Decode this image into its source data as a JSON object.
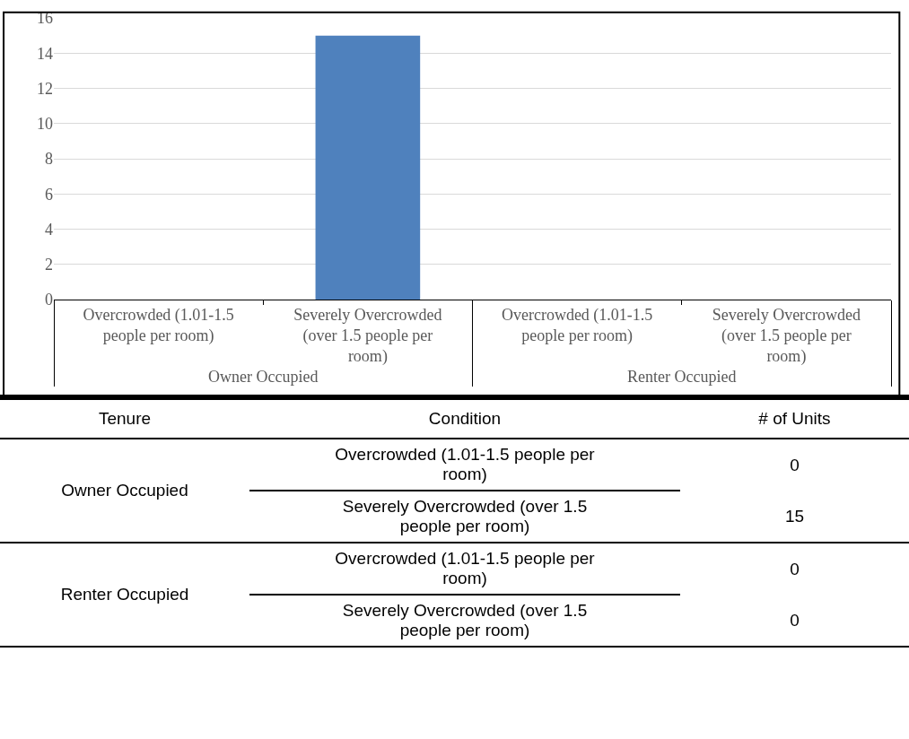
{
  "chart_data": [
    {
      "type": "bar",
      "categories": [
        "Overcrowded (1.01-1.5 people per room)",
        "Severely Overcrowded (over 1.5 people per room)",
        "Overcrowded (1.01-1.5 people per room)",
        "Severely Overcrowded (over 1.5 people per room)"
      ],
      "values": [
        0,
        15,
        0,
        0
      ],
      "color": "#4f81bd",
      "ylim": [
        0,
        16
      ],
      "yticks": [
        0,
        2,
        4,
        6,
        8,
        10,
        12,
        14,
        16
      ],
      "grid": "y",
      "legend": false,
      "annotations": [
        "Owner Occupied",
        "Renter Occupied"
      ]
    },
    {
      "type": "other",
      "categories": [
        "Overcrowded (1.01-1.5 people per room)",
        "Severely Overcrowded (over 1.5 people per room)",
        "Overcrowded (1.01-1.5 people per room)",
        "Severely Overcrowded (over 1.5 people per room)"
      ],
      "values": [
        0,
        15,
        0,
        0
      ],
      "data_labels": true,
      "annotations": [
        "Tenure",
        "Condition",
        "# of Units",
        "Owner Occupied",
        "Renter Occupied"
      ]
    }
  ]
}
